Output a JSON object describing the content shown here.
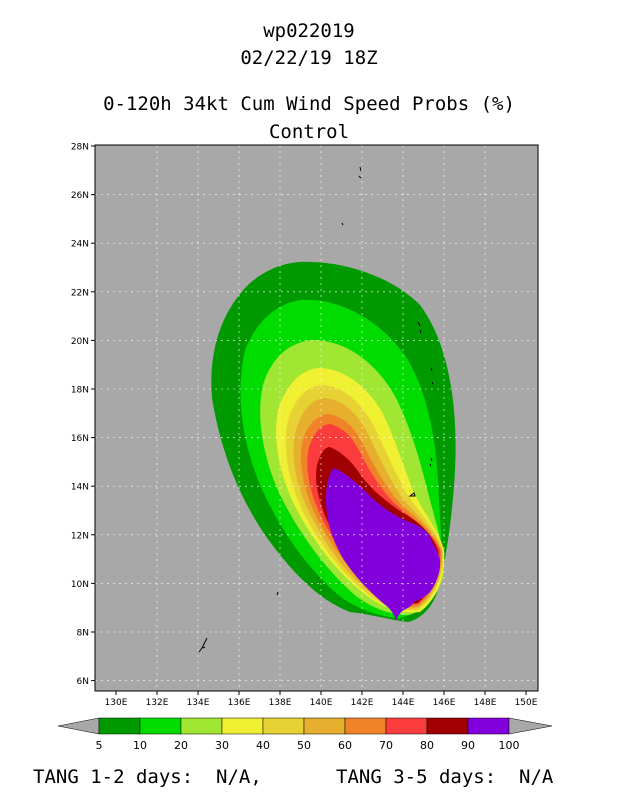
{
  "header": {
    "storm_id": "wp022019",
    "datetime": "02/22/19 18Z",
    "product": "0-120h 34kt Cum Wind Speed Probs (%)",
    "run": "Control"
  },
  "map": {
    "lat_labels": [
      "28N",
      "26N",
      "24N",
      "22N",
      "20N",
      "18N",
      "16N",
      "14N",
      "12N",
      "10N",
      "8N",
      "6N"
    ],
    "lon_labels": [
      "130E",
      "132E",
      "134E",
      "136E",
      "138E",
      "140E",
      "142E",
      "144E",
      "146E",
      "148E",
      "150E"
    ],
    "background_color": "#a8a8a8"
  },
  "legend": {
    "labels": [
      "5",
      "10",
      "20",
      "30",
      "40",
      "50",
      "60",
      "70",
      "80",
      "90",
      "100"
    ],
    "colors": [
      "#009a00",
      "#00dc00",
      "#a0e632",
      "#f0f032",
      "#e6d232",
      "#e6af2d",
      "#f08228",
      "#fa3c3c",
      "#a00000",
      "#8200dc"
    ]
  },
  "footer": {
    "tang_12": "TANG 1-2 days:  N/A,",
    "tang_35": "TANG 3-5 days:  N/A"
  }
}
